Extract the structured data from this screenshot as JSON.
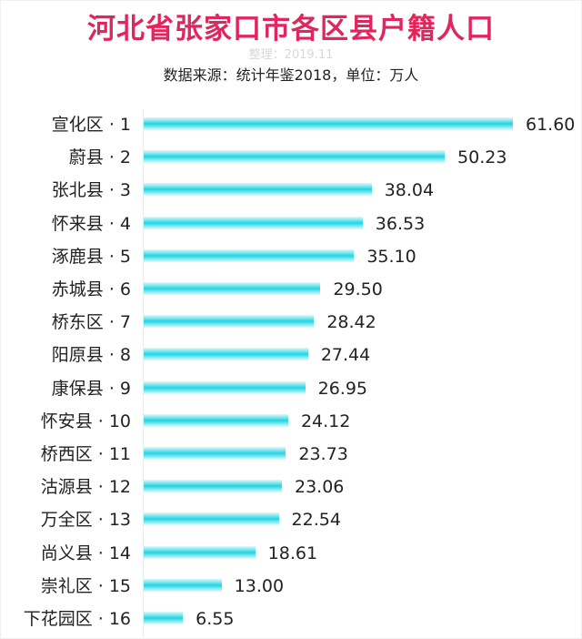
{
  "chart_data": {
    "type": "bar",
    "orientation": "horizontal",
    "title": "河北省张家口市各区县户籍人口",
    "subtitle": "整理：2019.11",
    "source_note": "数据来源：统计年鉴2018，单位：万人",
    "xlabel": "",
    "ylabel": "",
    "unit": "万人",
    "grid": false,
    "legend": null,
    "bar_color": "#1fd6e3",
    "title_color": "#e0265c",
    "categories": [
      "宣化区 · 1",
      "蔚县 · 2",
      "张北县 · 3",
      "怀来县 · 4",
      "涿鹿县 · 5",
      "赤城县 · 6",
      "桥东区 · 7",
      "阳原县 · 8",
      "康保县 · 9",
      "怀安县 · 10",
      "桥西区 · 11",
      "沽源县 · 12",
      "万全区 · 13",
      "尚义县 · 14",
      "崇礼区 · 15",
      "下花园区 · 16"
    ],
    "values": [
      61.6,
      50.23,
      38.04,
      36.53,
      35.1,
      29.5,
      28.42,
      27.44,
      26.95,
      24.12,
      23.73,
      23.06,
      22.54,
      18.61,
      13.0,
      6.55
    ],
    "value_labels": [
      "61.60",
      "50.23",
      "38.04",
      "36.53",
      "35.10",
      "29.50",
      "28.42",
      "27.44",
      "26.95",
      "24.12",
      "23.73",
      "23.06",
      "22.54",
      "18.61",
      "13.00",
      "6.55"
    ]
  }
}
